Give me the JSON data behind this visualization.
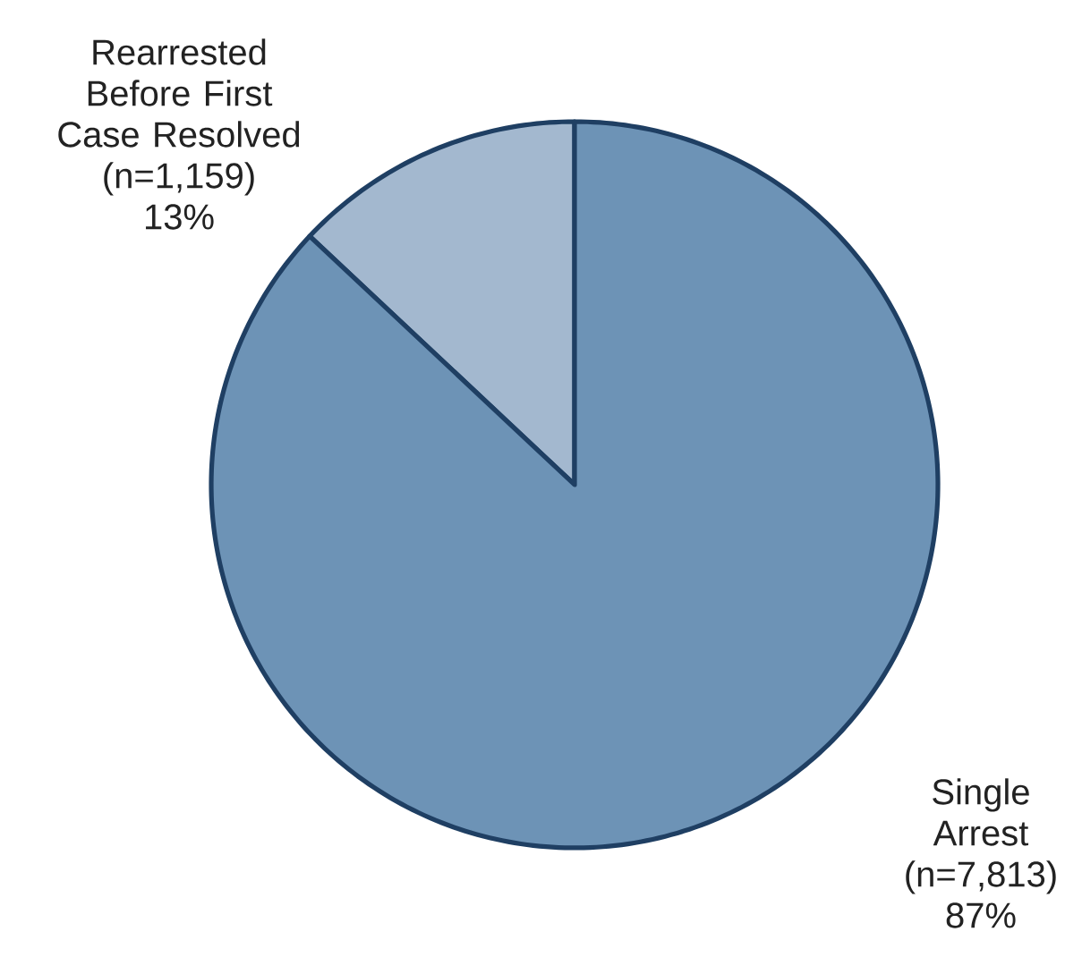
{
  "chart_data": {
    "type": "pie",
    "categories": [
      "Rearrested Before First Case Resolved (n=1,159)",
      "Single Arrest (n=7,813)"
    ],
    "values": [
      13,
      87
    ],
    "colors": [
      "#a3b8cf",
      "#6d93b6"
    ],
    "value_labels": [
      "13%",
      "87%"
    ]
  }
}
